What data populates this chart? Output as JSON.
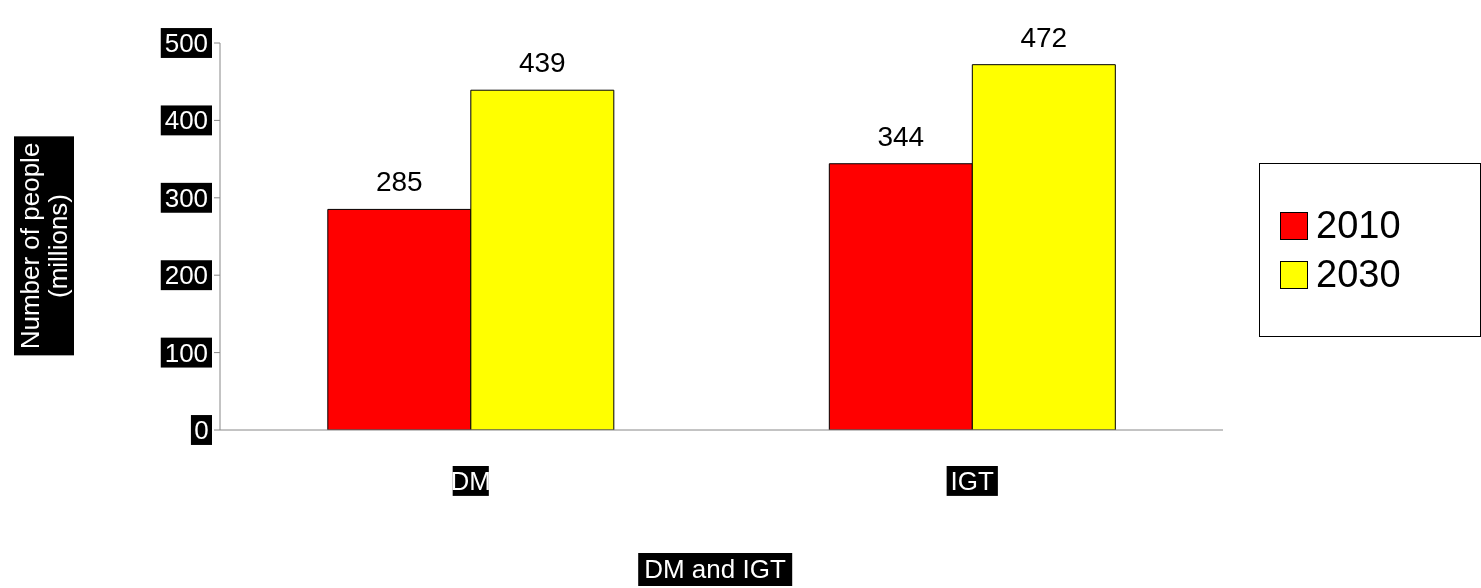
{
  "chart_data": {
    "type": "bar",
    "xlabel": "DM and IGT",
    "ylabel": "Number of people\n(millions)",
    "categories": [
      "DM",
      "IGT"
    ],
    "series": [
      {
        "name": "2010",
        "color": "#ff0000",
        "values": [
          285,
          344
        ]
      },
      {
        "name": "2030",
        "color": "#ffff00",
        "values": [
          439,
          472
        ]
      }
    ],
    "ylim": [
      0,
      500
    ],
    "yticks": [
      0,
      100,
      200,
      300,
      400,
      500
    ],
    "legend": "right",
    "data_labels": true
  }
}
